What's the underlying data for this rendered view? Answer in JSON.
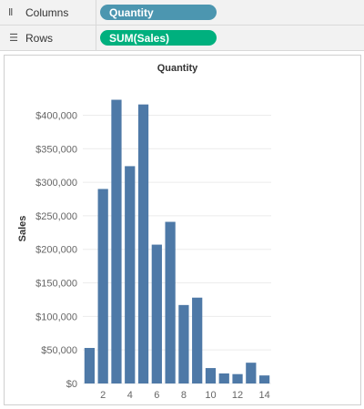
{
  "shelves": {
    "columns": {
      "label": "Columns",
      "icon": "columns-icon",
      "pill": "Quantity",
      "pill_color": "#4c96b0"
    },
    "rows": {
      "label": "Rows",
      "icon": "rows-icon",
      "pill": "SUM(Sales)",
      "pill_color": "#00b07e"
    }
  },
  "chart_data": {
    "type": "bar",
    "title": "Quantity",
    "ylabel": "Sales",
    "xlabel": "",
    "bar_color": "#4e79a7",
    "x": [
      1,
      2,
      3,
      4,
      5,
      6,
      7,
      8,
      9,
      10,
      11,
      12,
      13,
      14
    ],
    "values": [
      53000,
      290000,
      423000,
      324000,
      416000,
      207000,
      241000,
      117000,
      128000,
      23000,
      15000,
      14000,
      31000,
      12000
    ],
    "x_tick_labels": [
      "2",
      "4",
      "6",
      "8",
      "10",
      "12",
      "14"
    ],
    "x_ticks": [
      2,
      4,
      6,
      8,
      10,
      12,
      14
    ],
    "y_ticks": [
      0,
      50000,
      100000,
      150000,
      200000,
      250000,
      300000,
      350000,
      400000
    ],
    "y_tick_labels": [
      "$0",
      "$50,000",
      "$100,000",
      "$150,000",
      "$200,000",
      "$250,000",
      "$300,000",
      "$350,000",
      "$400,000"
    ],
    "ylim": [
      0,
      440000
    ],
    "grid": true
  }
}
